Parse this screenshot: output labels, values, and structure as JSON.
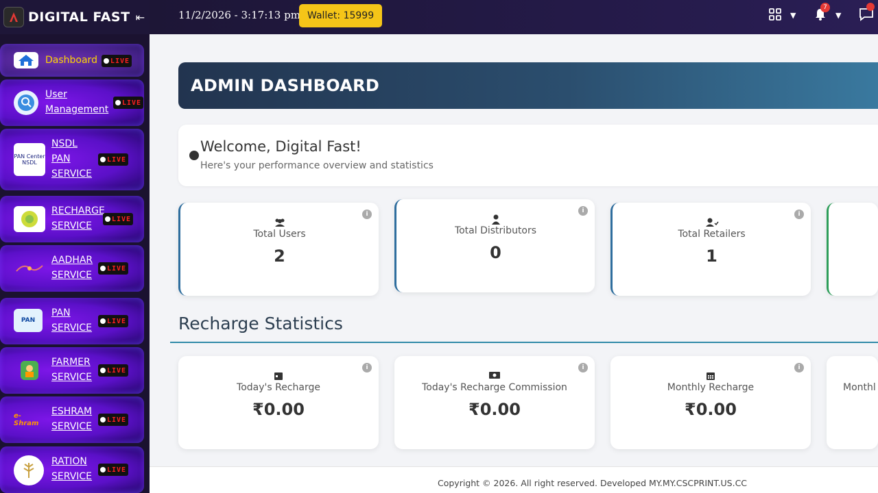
{
  "brand": {
    "name": "DIGITAL FAST"
  },
  "sidebar": {
    "items": [
      {
        "label": "Dashboard",
        "badge": "LIVE"
      },
      {
        "label_lines": [
          "User",
          "Management"
        ],
        "badge": "LIVE"
      },
      {
        "label_lines": [
          "NSDL",
          "PAN",
          "SERVICE"
        ],
        "icon_text": "PAN Center NSDL",
        "badge": "LIVE"
      },
      {
        "label_lines": [
          "RECHARGE",
          "SERVICE"
        ],
        "badge": "LIVE"
      },
      {
        "label_lines": [
          "AADHAR",
          "SERVICE"
        ],
        "badge": "LIVE"
      },
      {
        "label_lines": [
          "PAN",
          "SERVICE"
        ],
        "icon_text": "PAN",
        "badge": "LIVE"
      },
      {
        "label_lines": [
          "FARMER",
          "SERVICE"
        ],
        "badge": "LIVE"
      },
      {
        "label_lines": [
          "ESHRAM",
          "SERVICE"
        ],
        "icon_text": "e-Shram",
        "badge": "LIVE"
      },
      {
        "label_lines": [
          "RATION",
          "SERVICE"
        ],
        "badge": "LIVE"
      }
    ]
  },
  "topbar": {
    "datetime": "11/2/2026 - 3:17:13 pm",
    "wallet": "Wallet: 15999",
    "notification_count": "7"
  },
  "banner": {
    "title": "ADMIN DASHBOARD"
  },
  "welcome": {
    "title": "Welcome, Digital Fast!",
    "subtitle": "Here's your performance overview and statistics"
  },
  "user_stats": [
    {
      "label": "Total Users",
      "value": "2",
      "icon": "users-icon"
    },
    {
      "label": "Total Distributors",
      "value": "0",
      "icon": "distributor-icon"
    },
    {
      "label": "Total Retailers",
      "value": "1",
      "icon": "retailer-icon"
    }
  ],
  "recharge_section": {
    "title": "Recharge Statistics"
  },
  "recharge_stats": [
    {
      "label": "Today's Recharge",
      "value": "₹0.00",
      "icon": "calendar-day-icon"
    },
    {
      "label": "Today's Recharge Commission",
      "value": "₹0.00",
      "icon": "money-icon"
    },
    {
      "label": "Monthly Recharge",
      "value": "₹0.00",
      "icon": "calendar-icon"
    },
    {
      "label": "Monthl"
    }
  ],
  "footer": {
    "text": "Copyright © 2026. All right reserved. Developed MY.MY.CSCPRINT.US.CC"
  },
  "colors": {
    "accent_yellow": "#f5c518",
    "sidebar_purple": "#5b10c8",
    "banner_blue": "#2b4e6e",
    "live_red": "#ff2020"
  }
}
